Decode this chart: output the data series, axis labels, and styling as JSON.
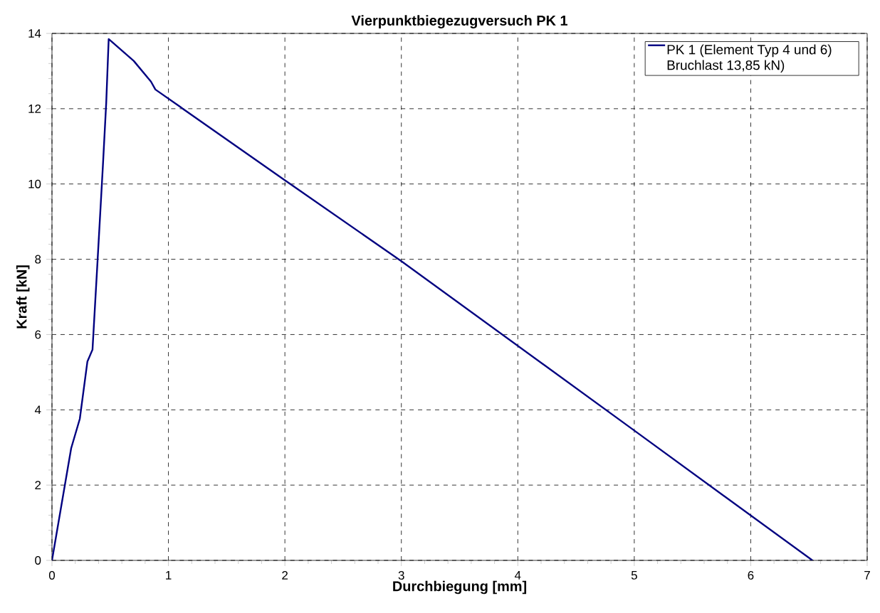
{
  "chart_data": {
    "type": "line",
    "title": "Vierpunktbiegezugversuch PK 1",
    "xlabel": "Durchbiegung [mm]",
    "ylabel": "Kraft [kN]",
    "x": [
      0,
      0.165,
      0.239,
      0.304,
      0.348,
      0.392,
      0.437,
      0.466,
      0.487,
      0.702,
      0.85,
      0.888,
      2,
      3,
      5,
      6.53
    ],
    "series": [
      {
        "name": "PK 1 (Element Typ 4 und 6) Bruchlast 13,85 kN)",
        "color": "#000080",
        "values": [
          0,
          2.98,
          3.76,
          5.28,
          5.6,
          7.99,
          10.47,
          12.17,
          13.85,
          13.27,
          12.72,
          12.51,
          10.1,
          7.95,
          3.45,
          0
        ]
      }
    ],
    "xlim": [
      0,
      7
    ],
    "ylim": [
      0,
      14
    ],
    "xticks": [
      0,
      1,
      2,
      3,
      4,
      5,
      6,
      7
    ],
    "yticks": [
      0,
      2,
      4,
      6,
      8,
      10,
      12,
      14
    ],
    "grid": true,
    "legend": "top right",
    "marker": "none",
    "line_style": "solid"
  }
}
